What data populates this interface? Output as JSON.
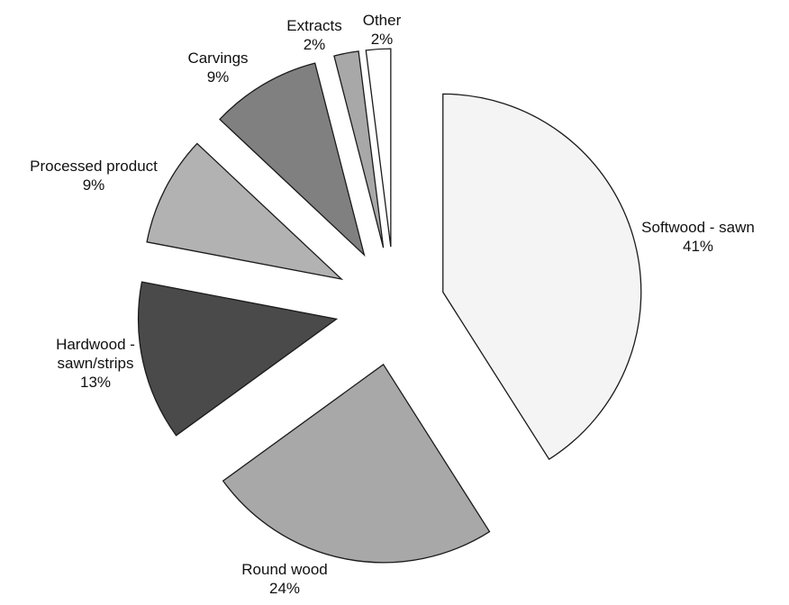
{
  "chart_data": {
    "type": "pie",
    "exploded": true,
    "title": "",
    "slices": [
      {
        "label_lines": [
          "Softwood - sawn"
        ],
        "percent_label": "41%",
        "value": 41,
        "color": "#f4f4f4"
      },
      {
        "label_lines": [
          "Round wood"
        ],
        "percent_label": "24%",
        "value": 24,
        "color": "#a8a8a8"
      },
      {
        "label_lines": [
          "Hardwood -",
          "sawn/strips"
        ],
        "percent_label": "13%",
        "value": 13,
        "color": "#4a4a4a"
      },
      {
        "label_lines": [
          "Processed product"
        ],
        "percent_label": "9%",
        "value": 9,
        "color": "#b2b2b2"
      },
      {
        "label_lines": [
          "Carvings"
        ],
        "percent_label": "9%",
        "value": 9,
        "color": "#808080"
      },
      {
        "label_lines": [
          "Extracts"
        ],
        "percent_label": "2%",
        "value": 2,
        "color": "#a8a8a8"
      },
      {
        "label_lines": [
          "Other"
        ],
        "percent_label": "2%",
        "value": 2,
        "color": "#ffffff"
      }
    ]
  }
}
